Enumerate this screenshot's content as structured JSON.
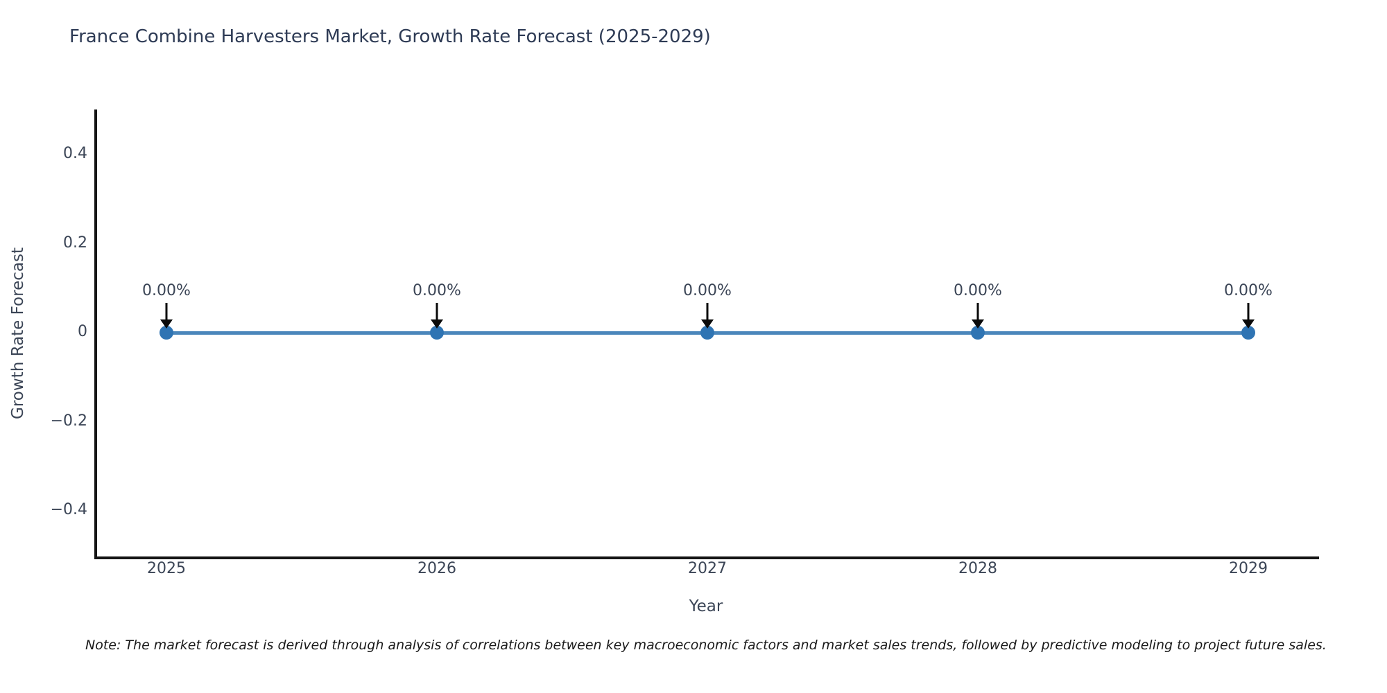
{
  "chart_data": {
    "type": "line",
    "title": "France Combine Harvesters Market, Growth Rate Forecast (2025-2029)",
    "xlabel": "Year",
    "ylabel": "Growth Rate Forecast",
    "categories": [
      "2025",
      "2026",
      "2027",
      "2028",
      "2029"
    ],
    "values": [
      0,
      0,
      0,
      0,
      0
    ],
    "point_labels": [
      "0.00%",
      "0.00%",
      "0.00%",
      "0.00%",
      "0.00%"
    ],
    "ytick_labels": [
      "0.4",
      "0.2",
      "0",
      "−0.2",
      "−0.4"
    ],
    "ytick_values": [
      0.4,
      0.2,
      0,
      -0.2,
      -0.4
    ],
    "ylim": [
      -0.5,
      0.5
    ],
    "grid": false,
    "legend": null,
    "line_color": "#4a86bb",
    "marker_color": "#2f74b3",
    "axis_color": "#151515",
    "tick_text_color": "#3b4556",
    "title_color": "#2e3b55"
  },
  "note": {
    "text": "Note: The market forecast is derived through analysis of correlations between key macroeconomic factors and market sales trends, followed by predictive modeling to project future sales."
  }
}
